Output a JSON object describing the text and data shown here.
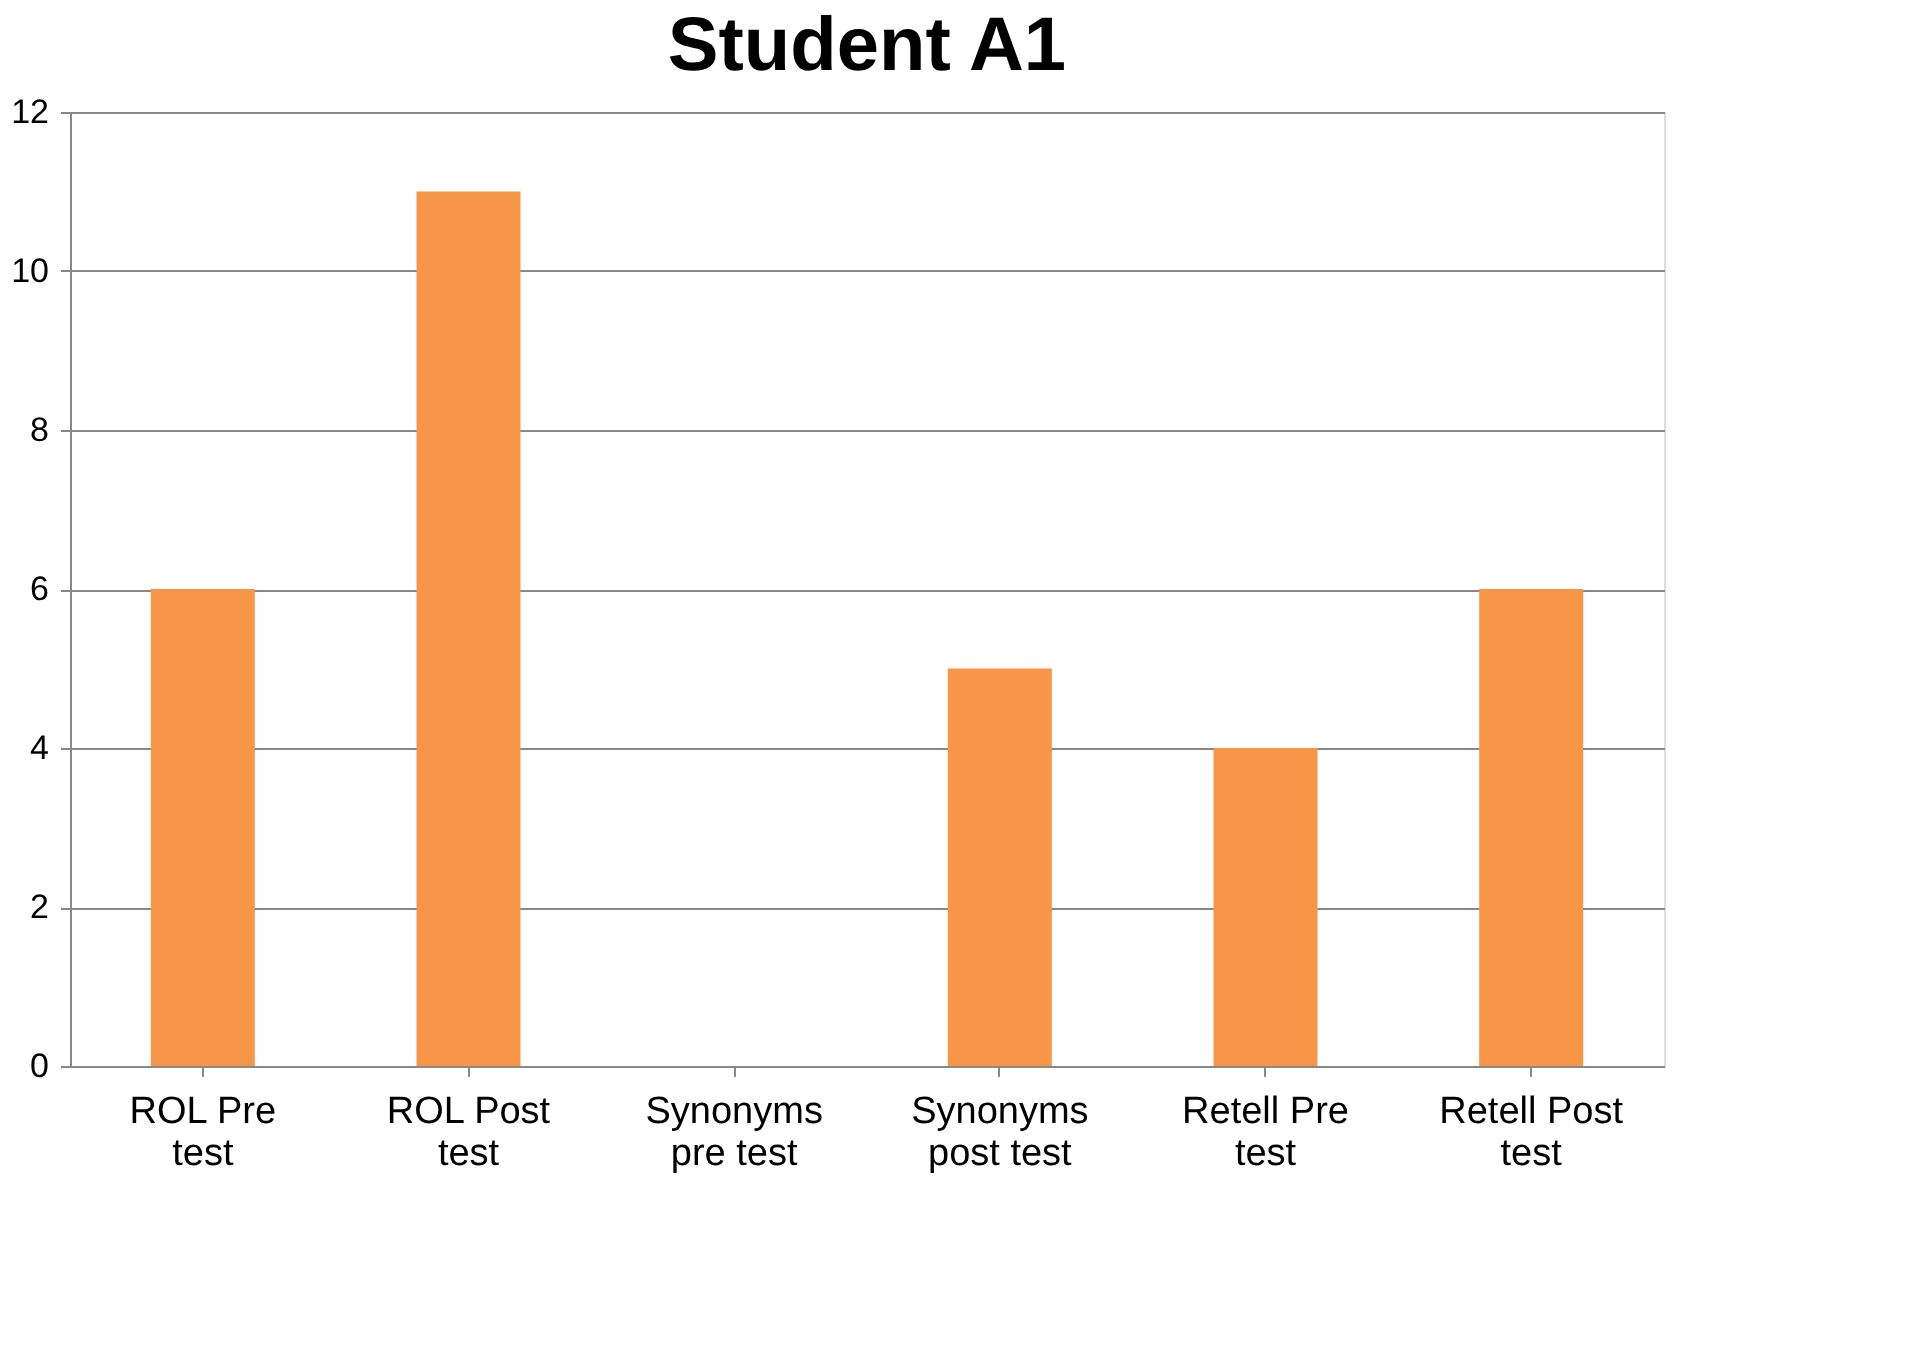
{
  "chart_data": {
    "type": "bar",
    "title": "Student A1",
    "categories": [
      "ROL Pre test",
      "ROL Post test",
      "Synonyms pre test",
      "Synonyms post test",
      "Retell Pre test",
      "Retell Post test"
    ],
    "values": [
      6,
      11,
      0,
      5,
      4,
      6
    ],
    "color": "#f79646",
    "ylim": [
      0,
      12
    ],
    "yticks": [
      0,
      2,
      4,
      6,
      8,
      10,
      12
    ],
    "grid": "y"
  }
}
